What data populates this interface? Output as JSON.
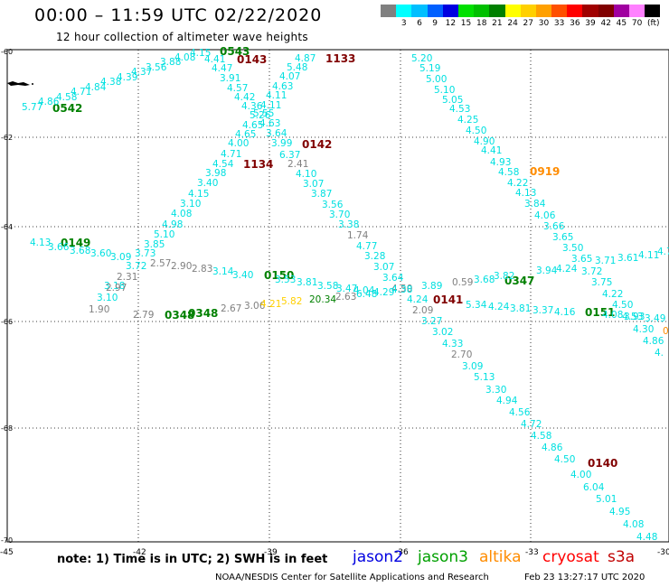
{
  "header": {
    "title": "00:00 – 11:59 UTC 02/22/2020",
    "subtitle": "12 hour collection of altimeter wave heights"
  },
  "legend": {
    "unit": "(ft)",
    "items": [
      {
        "label": "",
        "color": "#808080"
      },
      {
        "label": "3",
        "color": "#00ffff"
      },
      {
        "label": "6",
        "color": "#00bfff"
      },
      {
        "label": "9",
        "color": "#0060ff"
      },
      {
        "label": "12",
        "color": "#0000e0"
      },
      {
        "label": "15",
        "color": "#00e000"
      },
      {
        "label": "18",
        "color": "#00c000"
      },
      {
        "label": "21",
        "color": "#008000"
      },
      {
        "label": "24",
        "color": "#ffff00"
      },
      {
        "label": "27",
        "color": "#ffd000"
      },
      {
        "label": "30",
        "color": "#ffa000"
      },
      {
        "label": "33",
        "color": "#ff5000"
      },
      {
        "label": "36",
        "color": "#ff0000"
      },
      {
        "label": "39",
        "color": "#a00000"
      },
      {
        "label": "42",
        "color": "#800000"
      },
      {
        "label": "45",
        "color": "#a000a0"
      },
      {
        "label": "70",
        "color": "#ff80ff"
      },
      {
        "label": "",
        "color": "#000000"
      }
    ]
  },
  "axes": {
    "lon_ticks": [
      "-45",
      "-42",
      "-39",
      "-36",
      "-33",
      "-30"
    ],
    "lat_ticks": [
      "-60",
      "-62",
      "-64",
      "-66",
      "-68",
      "-70"
    ]
  },
  "labels": [
    [
      "0543",
      "#008000",
      243,
      61
    ],
    [
      "0143",
      "#800000",
      262,
      70
    ],
    [
      "1133",
      "#800000",
      360,
      69
    ],
    [
      "0542",
      "#008000",
      58,
      124
    ],
    [
      "0142",
      "#800000",
      334,
      164
    ],
    [
      "1134",
      "#800000",
      269,
      186
    ],
    [
      "0919",
      "#ff8c00",
      586,
      194
    ],
    [
      "0149",
      "#008000",
      67,
      273
    ],
    [
      "0150",
      "#008000",
      292,
      309
    ],
    [
      "0347",
      "#008000",
      558,
      315
    ],
    [
      "0141",
      "#800000",
      479,
      336
    ],
    [
      "0348",
      "#008000",
      182,
      353
    ],
    [
      "0348",
      "#008000",
      208,
      351
    ],
    [
      "0151",
      "#008000",
      647,
      350
    ],
    [
      "0140",
      "#800000",
      650,
      517
    ],
    [
      "0",
      "#ff8c00",
      733,
      370
    ],
    [
      "4.15",
      "#00e0e0",
      210,
      62
    ],
    [
      "4.08",
      "#00e0e0",
      193,
      67
    ],
    [
      "3.88",
      "#00e0e0",
      177,
      72
    ],
    [
      "3.56",
      "#00e0e0",
      161,
      78
    ],
    [
      "4.37",
      "#00e0e0",
      145,
      83
    ],
    [
      "4.39",
      "#00e0e0",
      129,
      89
    ],
    [
      "4.38",
      "#00e0e0",
      111,
      94
    ],
    [
      "4.84",
      "#00e0e0",
      94,
      100
    ],
    [
      "4.71",
      "#00e0e0",
      78,
      105
    ],
    [
      "4.58",
      "#00e0e0",
      62,
      111
    ],
    [
      "4.86",
      "#00e0e0",
      42,
      116
    ],
    [
      "5.77",
      "#00e0e0",
      24,
      122
    ],
    [
      "4.41",
      "#00e0e0",
      226,
      69
    ],
    [
      "4.47",
      "#00e0e0",
      234,
      79
    ],
    [
      "3.91",
      "#00e0e0",
      243,
      90
    ],
    [
      "4.57",
      "#00e0e0",
      251,
      101
    ],
    [
      "4.42",
      "#00e0e0",
      259,
      111
    ],
    [
      "4.36",
      "#00e0e0",
      267,
      121
    ],
    [
      "5.26",
      "#00e0e0",
      276,
      131
    ],
    [
      "4.65",
      "#00e0e0",
      268,
      142
    ],
    [
      "4.65",
      "#00e0e0",
      260,
      152
    ],
    [
      "4.00",
      "#00e0e0",
      252,
      162
    ],
    [
      "4.71",
      "#00e0e0",
      244,
      174
    ],
    [
      "4.54",
      "#00e0e0",
      235,
      185
    ],
    [
      "3.98",
      "#00e0e0",
      227,
      195
    ],
    [
      "3.40",
      "#00e0e0",
      218,
      206
    ],
    [
      "4.15",
      "#00e0e0",
      208,
      218
    ],
    [
      "3.10",
      "#00e0e0",
      199,
      229
    ],
    [
      "4.08",
      "#00e0e0",
      189,
      240
    ],
    [
      "4.98",
      "#00e0e0",
      179,
      252
    ],
    [
      "5.10",
      "#00e0e0",
      170,
      263
    ],
    [
      "3.85",
      "#00e0e0",
      159,
      274
    ],
    [
      "3.73",
      "#00e0e0",
      149,
      284
    ],
    [
      "3.72",
      "#00e0e0",
      139,
      298
    ],
    [
      "3.18",
      "#00e0e0",
      115,
      320
    ],
    [
      "3.10",
      "#00e0e0",
      107,
      333
    ],
    [
      "1.90",
      "#808080",
      98,
      346
    ],
    [
      "2.97",
      "#808080",
      117,
      322
    ],
    [
      "2.31",
      "#808080",
      129,
      310
    ],
    [
      "2.57",
      "#808080",
      166,
      295
    ],
    [
      "2.90",
      "#808080",
      189,
      298
    ],
    [
      "2.83",
      "#808080",
      212,
      301
    ],
    [
      "4.87",
      "#00e0e0",
      326,
      68
    ],
    [
      "5.48",
      "#00e0e0",
      317,
      78
    ],
    [
      "4.07",
      "#00e0e0",
      309,
      88
    ],
    [
      "4.63",
      "#00e0e0",
      301,
      99
    ],
    [
      "4.11",
      "#00e0e0",
      294,
      109
    ],
    [
      "4.11",
      "#00e0e0",
      288,
      120
    ],
    [
      "5.55",
      "#00e0e0",
      280,
      129
    ],
    [
      "4.63",
      "#00e0e0",
      287,
      140
    ],
    [
      "3.64",
      "#00e0e0",
      294,
      151
    ],
    [
      "3.99",
      "#00e0e0",
      300,
      162
    ],
    [
      "6.37",
      "#00e0e0",
      309,
      175
    ],
    [
      "2.41",
      "#808080",
      318,
      185
    ],
    [
      "4.10",
      "#00e0e0",
      327,
      196
    ],
    [
      "3.07",
      "#00e0e0",
      335,
      207
    ],
    [
      "3.87",
      "#00e0e0",
      344,
      218
    ],
    [
      "3.56",
      "#00e0e0",
      356,
      230
    ],
    [
      "3.70",
      "#00e0e0",
      364,
      241
    ],
    [
      "3.38",
      "#00e0e0",
      374,
      252
    ],
    [
      "1.74",
      "#808080",
      384,
      264
    ],
    [
      "4.77",
      "#00e0e0",
      394,
      276
    ],
    [
      "3.28",
      "#00e0e0",
      403,
      287
    ],
    [
      "3.07",
      "#00e0e0",
      413,
      299
    ],
    [
      "3.64",
      "#00e0e0",
      423,
      311
    ],
    [
      "4.50",
      "#808080",
      433,
      323
    ],
    [
      "2.09",
      "#808080",
      456,
      347
    ],
    [
      "3.27",
      "#00e0e0",
      466,
      359
    ],
    [
      "3.02",
      "#00e0e0",
      478,
      371
    ],
    [
      "4.33",
      "#00e0e0",
      489,
      384
    ],
    [
      "2.70",
      "#808080",
      499,
      396
    ],
    [
      "3.09",
      "#00e0e0",
      511,
      409
    ],
    [
      "5.13",
      "#00e0e0",
      524,
      421
    ],
    [
      "3.30",
      "#00e0e0",
      537,
      435
    ],
    [
      "4.94",
      "#00e0e0",
      549,
      447
    ],
    [
      "4.56",
      "#00e0e0",
      563,
      460
    ],
    [
      "4.72",
      "#00e0e0",
      576,
      473
    ],
    [
      "4.58",
      "#00e0e0",
      587,
      486
    ],
    [
      "4.86",
      "#00e0e0",
      599,
      499
    ],
    [
      "4.50",
      "#00e0e0",
      613,
      512
    ],
    [
      "4.00",
      "#00e0e0",
      631,
      529
    ],
    [
      "6.04",
      "#00e0e0",
      645,
      543
    ],
    [
      "5.01",
      "#00e0e0",
      659,
      556
    ],
    [
      "4.95",
      "#00e0e0",
      674,
      570
    ],
    [
      "4.08",
      "#00e0e0",
      689,
      584
    ],
    [
      "4.48",
      "#00e0e0",
      704,
      598
    ],
    [
      "5.20",
      "#00e0e0",
      455,
      68
    ],
    [
      "5.19",
      "#00e0e0",
      464,
      79
    ],
    [
      "5.00",
      "#00e0e0",
      471,
      91
    ],
    [
      "5.10",
      "#00e0e0",
      480,
      103
    ],
    [
      "5.05",
      "#00e0e0",
      489,
      114
    ],
    [
      "4.53",
      "#00e0e0",
      497,
      124
    ],
    [
      "4.25",
      "#00e0e0",
      506,
      136
    ],
    [
      "4.50",
      "#00e0e0",
      515,
      148
    ],
    [
      "4.90",
      "#00e0e0",
      524,
      160
    ],
    [
      "4.41",
      "#00e0e0",
      532,
      170
    ],
    [
      "4.93",
      "#00e0e0",
      542,
      183
    ],
    [
      "4.58",
      "#00e0e0",
      551,
      194
    ],
    [
      "4.22",
      "#00e0e0",
      561,
      206
    ],
    [
      "4.13",
      "#00e0e0",
      570,
      217
    ],
    [
      "3.84",
      "#00e0e0",
      580,
      229
    ],
    [
      "4.06",
      "#00e0e0",
      591,
      242
    ],
    [
      "3.66",
      "#00e0e0",
      601,
      254
    ],
    [
      "3.65",
      "#00e0e0",
      611,
      266
    ],
    [
      "3.50",
      "#00e0e0",
      622,
      278
    ],
    [
      "3.65",
      "#00e0e0",
      632,
      290
    ],
    [
      "3.72",
      "#00e0e0",
      643,
      304
    ],
    [
      "3.75",
      "#00e0e0",
      654,
      316
    ],
    [
      "4.22",
      "#00e0e0",
      666,
      329
    ],
    [
      "4.50",
      "#00e0e0",
      677,
      341
    ],
    [
      "4.53",
      "#00e0e0",
      688,
      354
    ],
    [
      "4.30",
      "#00e0e0",
      700,
      368
    ],
    [
      "4.86",
      "#00e0e0",
      711,
      381
    ],
    [
      "4.",
      "#00e0e0",
      724,
      394
    ],
    [
      "4.13",
      "#00e0e0",
      33,
      272
    ],
    [
      "3.66",
      "#00e0e0",
      53,
      277
    ],
    [
      "3.68",
      "#00e0e0",
      77,
      281
    ],
    [
      "3.60",
      "#00e0e0",
      100,
      284
    ],
    [
      "3.09",
      "#00e0e0",
      122,
      288
    ],
    [
      "3.40",
      "#00e0e0",
      257,
      308
    ],
    [
      "3.14",
      "#00e0e0",
      235,
      304
    ],
    [
      "3.53",
      "#00e0e0",
      304,
      313
    ],
    [
      "3.81",
      "#00e0e0",
      328,
      316
    ],
    [
      "3.58",
      "#00e0e0",
      351,
      320
    ],
    [
      "3.47",
      "#00e0e0",
      372,
      323
    ],
    [
      "4.04",
      "#00e0e0",
      391,
      325
    ],
    [
      "4.29",
      "#00e0e0",
      413,
      327
    ],
    [
      "4.38",
      "#00e0e0",
      433,
      324
    ],
    [
      "3.89",
      "#00e0e0",
      466,
      320
    ],
    [
      "0.59",
      "#808080",
      500,
      316
    ],
    [
      "3.68",
      "#00e0e0",
      524,
      313
    ],
    [
      "3.82",
      "#00e0e0",
      546,
      309
    ],
    [
      "3.94",
      "#00e0e0",
      593,
      303
    ],
    [
      "4.24",
      "#00e0e0",
      615,
      301
    ],
    [
      "3.71",
      "#00e0e0",
      658,
      292
    ],
    [
      "3.61",
      "#00e0e0",
      683,
      289
    ],
    [
      "4.11",
      "#00e0e0",
      706,
      286
    ],
    [
      "4.7",
      "#00e0e0",
      727,
      282
    ],
    [
      "2.79",
      "#808080",
      147,
      352
    ],
    [
      "2.67",
      "#808080",
      244,
      345
    ],
    [
      "3.06",
      "#808080",
      270,
      342
    ],
    [
      "4.21",
      "#ffd000",
      288,
      340
    ],
    [
      "5.82",
      "#ffd000",
      311,
      337
    ],
    [
      "20.34",
      "#008000",
      342,
      335
    ],
    [
      "2.63",
      "#808080",
      371,
      332
    ],
    [
      "6.48",
      "#00e0e0",
      394,
      329
    ],
    [
      "4.24",
      "#00e0e0",
      450,
      335
    ],
    [
      "5.34",
      "#00e0e0",
      515,
      341
    ],
    [
      "4.24",
      "#00e0e0",
      540,
      343
    ],
    [
      "3.81",
      "#00e0e0",
      564,
      345
    ],
    [
      "3.37",
      "#00e0e0",
      589,
      347
    ],
    [
      "4.16",
      "#00e0e0",
      613,
      349
    ],
    [
      "4.08",
      "#00e0e0",
      666,
      352
    ],
    [
      "3.93",
      "#00e0e0",
      690,
      354
    ],
    [
      "3.49",
      "#00e0e0",
      713,
      356
    ]
  ],
  "footer": {
    "note": "note: 1) Time is in UTC; 2) SWH is in feet",
    "missions": [
      {
        "name": "jason2",
        "color": "#0000e0"
      },
      {
        "name": "jason3",
        "color": "#00a000"
      },
      {
        "name": "altika",
        "color": "#ff8c00"
      },
      {
        "name": "cryosat",
        "color": "#ff0000"
      },
      {
        "name": "s3a",
        "color": "#c00000"
      }
    ],
    "credit": "NOAA/NESDIS Center for Satellite Applications and Research",
    "timestamp": "Feb 23 13:27:17 UTC 2020"
  }
}
